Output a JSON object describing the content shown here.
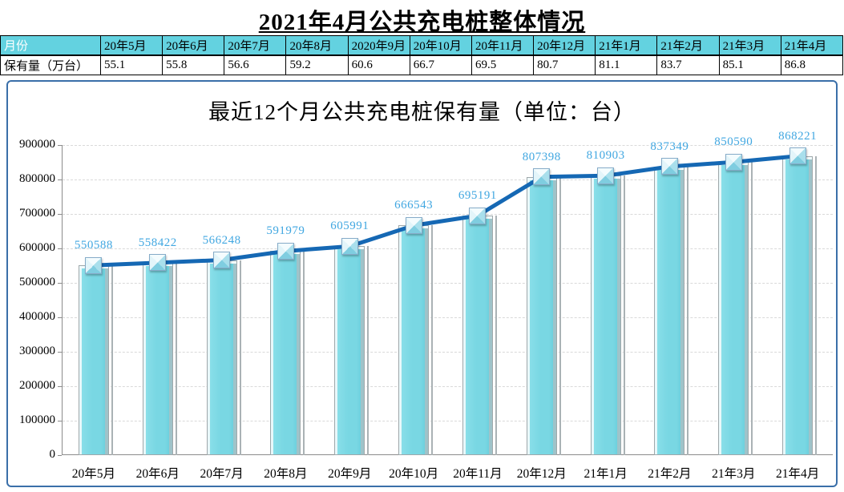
{
  "page_title": "2021年4月公共充电桩整体情况",
  "table": {
    "month_label": "月份",
    "row_label": "保有量（万台）",
    "months": [
      "20年5月",
      "20年6月",
      "20年7月",
      "20年8月",
      "2020年9月",
      "20年10月",
      "20年11月",
      "20年12月",
      "21年1月",
      "21年2月",
      "21年3月",
      "21年4月"
    ],
    "values_wantai": [
      "55.1",
      "55.8",
      "56.6",
      "59.2",
      "60.6",
      "66.7",
      "69.5",
      "80.7",
      "81.1",
      "83.7",
      "85.1",
      "86.8"
    ]
  },
  "chart_data": {
    "type": "bar",
    "overlay_line": true,
    "title": "最近12个月公共充电桩保有量（单位：台）",
    "categories": [
      "20年5月",
      "20年6月",
      "20年7月",
      "20年8月",
      "20年9月",
      "20年10月",
      "20年11月",
      "20年12月",
      "21年1月",
      "21年2月",
      "21年3月",
      "21年4月"
    ],
    "values": [
      550588,
      558422,
      566248,
      591979,
      605991,
      666543,
      695191,
      807398,
      810903,
      837349,
      850590,
      868221
    ],
    "title_note": "",
    "xlabel": "",
    "ylabel": "",
    "ylim": [
      0,
      900000
    ],
    "ytick_step": 100000,
    "grid": true,
    "legend_position": "none",
    "data_labels_shown": true
  },
  "colors": {
    "table_header_bg": "#63d2e0",
    "table_header_first_text": "#ffffff",
    "bar_fill": "#79d7e3",
    "line": "#1568b4",
    "data_label_text": "#41a7e1",
    "panel_border": "#3a6fa9",
    "gridline": "#d9d9d9"
  }
}
